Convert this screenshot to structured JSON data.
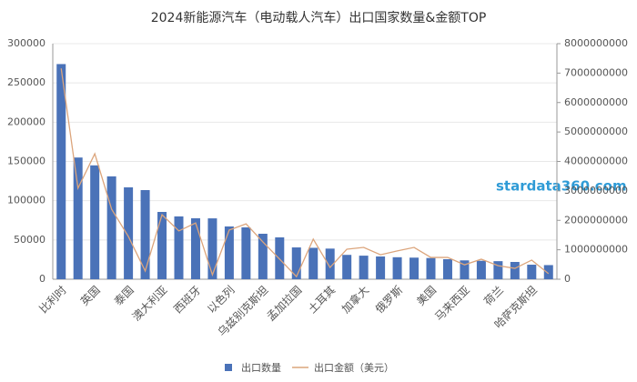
{
  "chart_data": {
    "type": "bar_line",
    "title": "2024新能源汽车（电动载人汽车）出口国家数量&金额TOP",
    "watermark": "stardata360.com",
    "categories": [
      "比利时",
      null,
      "英国",
      null,
      "泰国",
      null,
      "澳大利亚",
      null,
      "西班牙",
      null,
      "以色列",
      null,
      "乌兹别克斯坦",
      null,
      "孟加拉国",
      null,
      "土耳其",
      null,
      "加拿大",
      null,
      "俄罗斯",
      null,
      "美国",
      null,
      "马来西亚",
      null,
      "荷兰",
      null,
      "哈萨克斯坦",
      null
    ],
    "series": [
      {
        "name": "出口数量",
        "type": "bar",
        "color": "#4a72b8",
        "axis": "y",
        "values": [
          274000,
          155000,
          145000,
          131000,
          117000,
          113500,
          85700,
          80000,
          77600,
          77500,
          67200,
          66000,
          57900,
          53300,
          40500,
          40000,
          39000,
          31000,
          30000,
          29000,
          28000,
          27500,
          27000,
          25500,
          24000,
          23500,
          23000,
          22000,
          18500,
          18000
        ]
      },
      {
        "name": "出口金额（美元）",
        "type": "line",
        "color": "#dca57c",
        "axis": "y2",
        "values": [
          7160000000,
          3090000000,
          4260000000,
          2380000000,
          1450000000,
          280000000,
          2190000000,
          1640000000,
          1910000000,
          150000000,
          1670000000,
          1880000000,
          1270000000,
          680000000,
          90000000,
          1360000000,
          400000000,
          1020000000,
          1080000000,
          830000000,
          960000000,
          1080000000,
          740000000,
          740000000,
          490000000,
          680000000,
          460000000,
          370000000,
          650000000,
          190000000
        ]
      }
    ],
    "ylim": [
      0,
      300000
    ],
    "yticks": [
      0,
      50000,
      100000,
      150000,
      200000,
      250000,
      300000
    ],
    "y2lim": [
      0,
      8000000000
    ],
    "y2ticks": [
      0,
      1000000000,
      2000000000,
      3000000000,
      4000000000,
      5000000000,
      6000000000,
      7000000000,
      8000000000
    ],
    "grid": true,
    "legend": "bottom"
  }
}
